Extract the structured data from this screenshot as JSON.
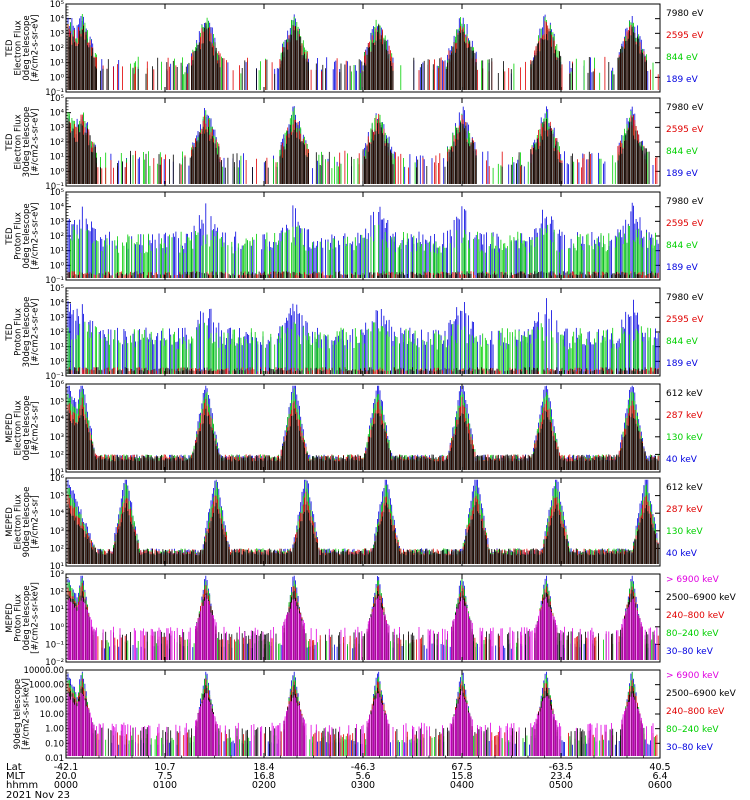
{
  "panels": [
    {
      "id": "ted-electron-0",
      "ylabel_lines": [
        "TED",
        "Electron Flux",
        "0deg telescope",
        "[#/cm2-s-sr-eV]"
      ],
      "yticks": [
        "10⁻¹",
        "10⁰",
        "10¹",
        "10²",
        "10³",
        "10⁴",
        "10⁵"
      ],
      "legend": [
        {
          "label": "7980 eV",
          "color": "#000000"
        },
        {
          "label": "2595 eV",
          "color": "#e00000"
        },
        {
          "label": "844 eV",
          "color": "#00d000"
        },
        {
          "label": "189 eV",
          "color": "#0000e0"
        }
      ]
    },
    {
      "id": "ted-electron-30",
      "ylabel_lines": [
        "TED",
        "Electron Flux",
        "30deg telescope",
        "[#/cm2-s-sr-eV]"
      ],
      "yticks": [
        "10⁻¹",
        "10⁰",
        "10¹",
        "10²",
        "10³",
        "10⁴",
        "10⁵"
      ],
      "legend": [
        {
          "label": "7980 eV",
          "color": "#000000"
        },
        {
          "label": "2595 eV",
          "color": "#e00000"
        },
        {
          "label": "844 eV",
          "color": "#00d000"
        },
        {
          "label": "189 eV",
          "color": "#0000e0"
        }
      ]
    },
    {
      "id": "ted-proton-0",
      "ylabel_lines": [
        "TED",
        "Proton Flux",
        "0deg telescope",
        "[#/cm2-s-sr-eV]"
      ],
      "yticks": [
        "10⁻¹",
        "10⁰",
        "10¹",
        "10²",
        "10³",
        "10⁴",
        "10⁵"
      ],
      "legend": [
        {
          "label": "7980 eV",
          "color": "#000000"
        },
        {
          "label": "2595 eV",
          "color": "#e00000"
        },
        {
          "label": "844 eV",
          "color": "#00d000"
        },
        {
          "label": "189 eV",
          "color": "#0000e0"
        }
      ]
    },
    {
      "id": "ted-proton-30",
      "ylabel_lines": [
        "TED",
        "Proton Flux",
        "30deg telescope",
        "[#/cm2-s-sr-eV]"
      ],
      "yticks": [
        "10⁻¹",
        "10⁰",
        "10¹",
        "10²",
        "10³",
        "10⁴",
        "10⁵"
      ],
      "legend": [
        {
          "label": "7980 eV",
          "color": "#000000"
        },
        {
          "label": "2595 eV",
          "color": "#e00000"
        },
        {
          "label": "844 eV",
          "color": "#00d000"
        },
        {
          "label": "189 eV",
          "color": "#0000e0"
        }
      ]
    },
    {
      "id": "meped-electron-0",
      "ylabel_lines": [
        "MEPED",
        "Electron Flux",
        "0deg telescope",
        "[#/cm2-s-sr]"
      ],
      "yticks": [
        "10¹",
        "10²",
        "10³",
        "10⁴",
        "10⁵",
        "10⁶"
      ],
      "legend": [
        {
          "label": "612 keV",
          "color": "#000000"
        },
        {
          "label": "287 keV",
          "color": "#e00000"
        },
        {
          "label": "130 keV",
          "color": "#00d000"
        },
        {
          "label": "40 keV",
          "color": "#0000e0"
        }
      ]
    },
    {
      "id": "meped-electron-90",
      "ylabel_lines": [
        "MEPED",
        "Electron Flux",
        "90deg telescope",
        "[#/cm2-s-sr]"
      ],
      "yticks": [
        "10¹",
        "10²",
        "10³",
        "10⁴",
        "10⁵",
        "10⁶"
      ],
      "legend": [
        {
          "label": "612 keV",
          "color": "#000000"
        },
        {
          "label": "287 keV",
          "color": "#e00000"
        },
        {
          "label": "130 keV",
          "color": "#00d000"
        },
        {
          "label": "40 keV",
          "color": "#0000e0"
        }
      ]
    },
    {
      "id": "meped-proton-0",
      "ylabel_lines": [
        "MEPED",
        "Proton Flux",
        "0deg telescope",
        "[#/cm2-s-sr-keV]"
      ],
      "yticks": [
        "10⁻²",
        "10⁻¹",
        "10⁰",
        "10¹",
        "10²",
        "10³"
      ],
      "legend": [
        {
          "label": "> 6900 keV",
          "color": "#e000e0"
        },
        {
          "label": "2500–6900 keV",
          "color": "#000000"
        },
        {
          "label": "240–800 keV",
          "color": "#e00000"
        },
        {
          "label": "80–240 keV",
          "color": "#00d000"
        },
        {
          "label": "30–80 keV",
          "color": "#0000e0"
        }
      ]
    },
    {
      "id": "meped-proton-90",
      "ylabel_lines": [
        "90deg telescope",
        "[#/cm2-s-sr-keV]"
      ],
      "yticks": [
        "0.01",
        "0.10",
        "1.00",
        "10.00",
        "100.00",
        "1000.00",
        "10000.00"
      ],
      "legend": [
        {
          "label": "> 6900 keV",
          "color": "#e000e0"
        },
        {
          "label": "2500–6900 keV",
          "color": "#000000"
        },
        {
          "label": "240–800 keV",
          "color": "#e00000"
        },
        {
          "label": "80–240 keV",
          "color": "#00d000"
        },
        {
          "label": "30–80 keV",
          "color": "#0000e0"
        }
      ]
    }
  ],
  "xaxis": {
    "row_labels": [
      "Lat",
      "MLT",
      "hhmm"
    ],
    "lat": [
      "-42.1",
      "10.7",
      "18.4",
      "-46.3",
      "67.5",
      "-63.5",
      "40.5"
    ],
    "mlt": [
      "20.0",
      "7.5",
      "16.8",
      "5.6",
      "15.8",
      "23.4",
      "6.4"
    ],
    "hhmm": [
      "0000",
      "0100",
      "0200",
      "0300",
      "0400",
      "0500",
      "0600"
    ],
    "date": "2021 Nov 23"
  }
}
